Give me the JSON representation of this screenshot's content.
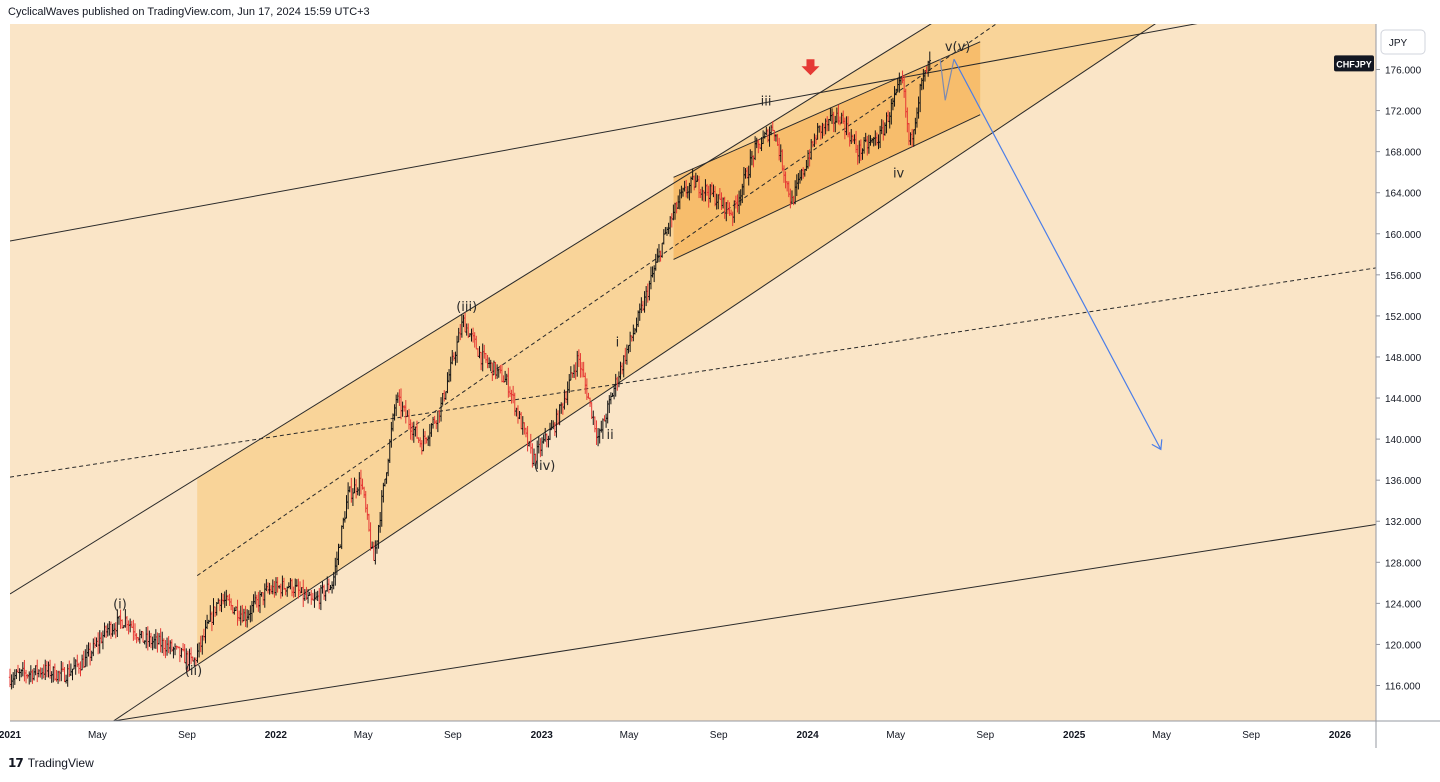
{
  "header": {
    "publisher_line": "CyclicalWaves published on TradingView.com, Jun 17, 2024 15:59 UTC+3"
  },
  "footer": {
    "brand": "TradingView",
    "logo_text": "17"
  },
  "chart_data": {
    "type": "candlestick",
    "symbol": "CHFJPY",
    "currency": "JPY",
    "last_price": 176.6,
    "ylim": [
      112.5,
      179.5
    ],
    "y_ticks": [
      "116.000",
      "120.000",
      "124.000",
      "128.000",
      "132.000",
      "136.000",
      "140.000",
      "144.000",
      "148.000",
      "152.000",
      "156.000",
      "160.000",
      "164.000",
      "168.000",
      "172.000",
      "176.000"
    ],
    "x_ticks": [
      "2021",
      "May",
      "Sep",
      "2022",
      "May",
      "Sep",
      "2023",
      "May",
      "Sep",
      "2024",
      "May",
      "Sep",
      "2025",
      "May",
      "Sep",
      "2026"
    ],
    "price_path": [
      [
        "2021-01-01",
        116.8
      ],
      [
        "2021-02-15",
        117.5
      ],
      [
        "2021-03-15",
        117.0
      ],
      [
        "2021-04-15",
        118.5
      ],
      [
        "2021-05-15",
        121.5
      ],
      [
        "2021-06-10",
        122.5
      ],
      [
        "2021-07-01",
        120.5
      ],
      [
        "2021-08-01",
        120.0
      ],
      [
        "2021-09-10",
        118.2
      ],
      [
        "2021-10-15",
        124.5
      ],
      [
        "2021-11-20",
        122.8
      ],
      [
        "2021-12-20",
        125.2
      ],
      [
        "2022-01-20",
        125.8
      ],
      [
        "2022-02-20",
        124.0
      ],
      [
        "2022-03-20",
        126.0
      ],
      [
        "2022-04-10",
        134.5
      ],
      [
        "2022-04-28",
        136.0
      ],
      [
        "2022-05-15",
        128.0
      ],
      [
        "2022-06-15",
        144.0
      ],
      [
        "2022-07-20",
        139.5
      ],
      [
        "2022-08-15",
        143.0
      ],
      [
        "2022-09-15",
        151.5
      ],
      [
        "2022-10-10",
        148.0
      ],
      [
        "2022-11-15",
        145.5
      ],
      [
        "2022-12-20",
        138.0
      ],
      [
        "2023-01-20",
        141.5
      ],
      [
        "2023-02-20",
        148.0
      ],
      [
        "2023-03-20",
        140.0
      ],
      [
        "2023-04-15",
        146.0
      ],
      [
        "2023-05-20",
        153.0
      ],
      [
        "2023-06-20",
        160.0
      ],
      [
        "2023-07-10",
        163.5
      ],
      [
        "2023-07-28",
        165.0
      ],
      [
        "2023-08-20",
        164.0
      ],
      [
        "2023-09-20",
        162.0
      ],
      [
        "2023-10-20",
        168.0
      ],
      [
        "2023-11-15",
        170.5
      ],
      [
        "2023-12-10",
        163.0
      ],
      [
        "2024-01-15",
        170.0
      ],
      [
        "2024-02-15",
        171.5
      ],
      [
        "2024-03-10",
        168.0
      ],
      [
        "2024-04-10",
        169.5
      ],
      [
        "2024-05-10",
        175.0
      ],
      [
        "2024-05-20",
        168.5
      ],
      [
        "2024-06-05",
        174.5
      ],
      [
        "2024-06-17",
        176.6
      ]
    ],
    "projection": [
      [
        "2024-07-01",
        177.0
      ],
      [
        "2024-07-08",
        173.0
      ],
      [
        "2024-07-20",
        177.0
      ],
      [
        "2025-04-30",
        139.0
      ]
    ],
    "wave_labels": [
      {
        "text": "(i)",
        "date": "2021-06-01",
        "price": 123.5
      },
      {
        "text": "(ii)",
        "date": "2021-09-10",
        "price": 117.0
      },
      {
        "text": "(iii)",
        "date": "2022-09-20",
        "price": 152.5
      },
      {
        "text": "(iv)",
        "date": "2023-01-05",
        "price": 137.0
      },
      {
        "text": "i",
        "date": "2023-04-15",
        "price": 149.0
      },
      {
        "text": "ii",
        "date": "2023-04-05",
        "price": 140.0
      },
      {
        "text": "iii",
        "date": "2023-11-05",
        "price": 172.5
      },
      {
        "text": "iv",
        "date": "2024-05-05",
        "price": 165.5
      },
      {
        "text": "v(v)",
        "date": "2024-07-25",
        "price": 177.8
      }
    ],
    "signal_arrow": {
      "date": "2024-01-05",
      "price": 177.0,
      "color": "#e53935"
    },
    "colors": {
      "background": "#fae5c7",
      "channel_fill": "#f9c87a",
      "inner_fill": "#f7b358",
      "candle_up": "#141414",
      "candle_down": "#e53935",
      "projection": "#4a7de8",
      "lines": "#2a2a2a"
    }
  }
}
